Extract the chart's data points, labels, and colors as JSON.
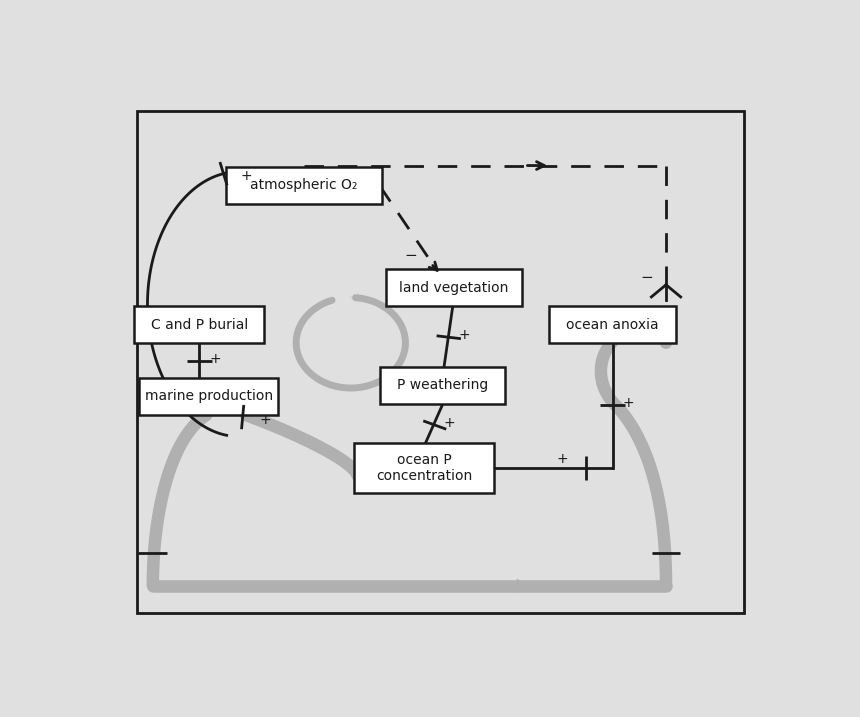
{
  "bg_color": "#e0e0e0",
  "box_bg": "#ffffff",
  "black": "#1a1a1a",
  "gray": "#b0b0b0",
  "labels": {
    "atm_o2": "atmospheric O₂",
    "land_veg": "land vegetation",
    "c_p_burial": "C and P burial",
    "ocean_anoxia": "ocean anoxia",
    "p_weather": "P weathering",
    "marine_prod": "marine production",
    "ocean_p": "ocean P\nconcentration"
  },
  "box_positions": {
    "atm_o2": [
      0.295,
      0.82,
      0.235,
      0.068
    ],
    "land_veg": [
      0.52,
      0.635,
      0.205,
      0.068
    ],
    "c_p_burial": [
      0.138,
      0.568,
      0.195,
      0.068
    ],
    "ocean_anoxia": [
      0.758,
      0.568,
      0.19,
      0.068
    ],
    "p_weather": [
      0.503,
      0.458,
      0.188,
      0.068
    ],
    "marine_prod": [
      0.152,
      0.438,
      0.208,
      0.068
    ],
    "ocean_p": [
      0.475,
      0.308,
      0.21,
      0.09
    ]
  }
}
